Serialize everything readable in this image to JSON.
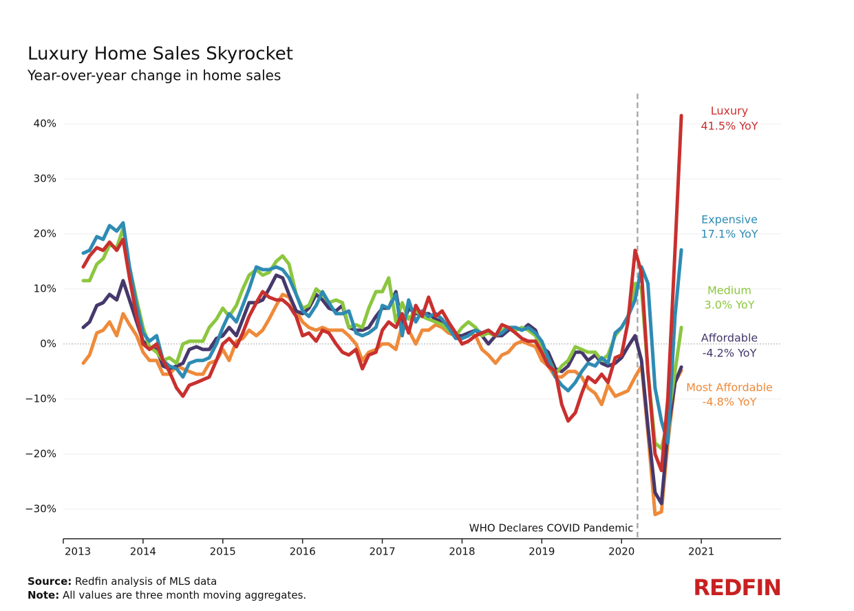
{
  "chart_data": {
    "type": "line",
    "title": "Luxury Home Sales Skyrocket",
    "subtitle": "Year-over-year change in home sales",
    "source_label": "Source:",
    "source": "Redfin analysis of MLS data",
    "note_label": "Note:",
    "note": "All values are three month moving aggregates.",
    "logo": "REDFIN",
    "annotation": {
      "x": 2020.2,
      "text": "WHO Declares COVID Pandemic"
    },
    "xlim": [
      2013,
      2022
    ],
    "xticks": [
      2013,
      2014,
      2015,
      2016,
      2017,
      2018,
      2019,
      2020,
      2021
    ],
    "ylim": [
      -35.4,
      45
    ],
    "yticks": [
      {
        "value": -30,
        "label": "−30%"
      },
      {
        "value": -20,
        "label": "−20%"
      },
      {
        "value": -10,
        "label": "−10%"
      },
      {
        "value": 0,
        "label": "0%"
      },
      {
        "value": 10,
        "label": "10%"
      },
      {
        "value": 20,
        "label": "20%"
      },
      {
        "value": 30,
        "label": "30%"
      },
      {
        "value": 40,
        "label": "40%"
      }
    ],
    "grid": true,
    "x": [
      2013.25,
      2013.33,
      2013.42,
      2013.5,
      2013.58,
      2013.67,
      2013.75,
      2013.83,
      2013.92,
      2014,
      2014.08,
      2014.17,
      2014.25,
      2014.33,
      2014.42,
      2014.5,
      2014.58,
      2014.67,
      2014.75,
      2014.83,
      2014.92,
      2015,
      2015.08,
      2015.17,
      2015.25,
      2015.33,
      2015.42,
      2015.5,
      2015.58,
      2015.67,
      2015.75,
      2015.83,
      2015.92,
      2016,
      2016.08,
      2016.17,
      2016.25,
      2016.33,
      2016.42,
      2016.5,
      2016.58,
      2016.67,
      2016.75,
      2016.83,
      2016.92,
      2017,
      2017.08,
      2017.17,
      2017.25,
      2017.33,
      2017.42,
      2017.5,
      2017.58,
      2017.67,
      2017.75,
      2017.83,
      2017.92,
      2018,
      2018.08,
      2018.17,
      2018.25,
      2018.33,
      2018.42,
      2018.5,
      2018.58,
      2018.67,
      2018.75,
      2018.83,
      2018.92,
      2019,
      2019.08,
      2019.17,
      2019.25,
      2019.33,
      2019.42,
      2019.5,
      2019.58,
      2019.67,
      2019.75,
      2019.83,
      2019.92,
      2020,
      2020.08,
      2020.17,
      2020.25,
      2020.33,
      2020.42,
      2020.5,
      2020.58,
      2020.67,
      2020.75
    ],
    "series": [
      {
        "name": "Luxury",
        "end_label": "41.5% YoY",
        "color": "#c8302e",
        "values": [
          14,
          16,
          17.5,
          17,
          18.5,
          17,
          19,
          12,
          5,
          0,
          -1,
          0,
          -3,
          -5,
          -8,
          -9.5,
          -7.5,
          -7,
          -6.5,
          -6,
          -3,
          0,
          1,
          -0.5,
          2,
          5,
          7.5,
          9.5,
          8.5,
          8,
          8,
          7,
          5,
          1.5,
          2,
          0.5,
          2.5,
          2,
          0,
          -1.5,
          -2,
          -1,
          -4.5,
          -2,
          -1.5,
          2.5,
          4,
          3,
          5.5,
          2,
          7,
          5,
          8.5,
          5,
          6,
          4,
          2,
          0,
          0.5,
          1.5,
          2,
          2.5,
          1.5,
          3.5,
          3,
          2,
          1,
          0.5,
          0.5,
          -1.5,
          -4,
          -5,
          -11,
          -14,
          -12.5,
          -9,
          -6,
          -7,
          -5.5,
          -7,
          -2.5,
          -2,
          4,
          17,
          13,
          -5,
          -20,
          -23,
          -10,
          17,
          41.5
        ]
      },
      {
        "name": "Expensive",
        "end_label": "17.1% YoY",
        "color": "#2e8bb3",
        "values": [
          16.5,
          17,
          19.5,
          19,
          21.5,
          20.5,
          22,
          14,
          7,
          2,
          0.5,
          1.5,
          -3,
          -4,
          -4.5,
          -6,
          -3.5,
          -3,
          -3,
          -2.5,
          0,
          3,
          5.5,
          4,
          7,
          10,
          14,
          13.5,
          13.5,
          14,
          13.5,
          12,
          9,
          6,
          5,
          7,
          9.5,
          7.5,
          5.5,
          5.5,
          6,
          2,
          1.5,
          2,
          3,
          7,
          6.5,
          9,
          1.5,
          8,
          4,
          6,
          5,
          5.5,
          4.5,
          3,
          1,
          1,
          1.5,
          2.5,
          2,
          2.5,
          1.5,
          2,
          3,
          3,
          2.5,
          3,
          2,
          0.5,
          -2.5,
          -6,
          -7.5,
          -8.5,
          -7,
          -5,
          -3.5,
          -4,
          -2.5,
          -3.5,
          2,
          3,
          5,
          8,
          14,
          11,
          -8,
          -14,
          -18,
          5,
          17.1
        ]
      },
      {
        "name": "Medium",
        "end_label": "3.0% YoY",
        "color": "#8cc63f",
        "values": [
          11.5,
          11.5,
          14.5,
          15.5,
          18,
          17.5,
          21,
          14,
          8,
          3,
          -0.5,
          -1.5,
          -3,
          -2.5,
          -3.5,
          0,
          0.5,
          0.5,
          0.5,
          3,
          4.5,
          6.5,
          5,
          7,
          10,
          12.5,
          13.5,
          12.5,
          13,
          15,
          16,
          14.5,
          9,
          6.5,
          7,
          10,
          9,
          7.5,
          8,
          7.5,
          3,
          3.5,
          3,
          6.5,
          9.5,
          9.5,
          12,
          4,
          7.5,
          4.5,
          6,
          5,
          4.5,
          4,
          3.5,
          2.5,
          1.5,
          3,
          4,
          3,
          1.5,
          2,
          1.5,
          2.5,
          3,
          2.5,
          3,
          2.5,
          1.5,
          -1,
          -2.5,
          -5.5,
          -4,
          -3,
          -0.5,
          -1,
          -1.5,
          -1.5,
          -3,
          -2,
          1.5,
          3,
          5,
          11,
          10,
          -5,
          -18,
          -19,
          -14,
          -5,
          3.0
        ]
      },
      {
        "name": "Affordable",
        "end_label": "-4.2% YoY",
        "color": "#46386b",
        "values": [
          3,
          4,
          7,
          7.5,
          9,
          8,
          11.5,
          8,
          4,
          0.5,
          -0.5,
          -1,
          -4,
          -4.5,
          -4,
          -3.5,
          -1,
          -0.5,
          -1,
          -1,
          1,
          1.5,
          3,
          1.5,
          4.5,
          7.5,
          7.5,
          8,
          10,
          12.5,
          12,
          9,
          6,
          5.5,
          6.5,
          9,
          8,
          6.5,
          6,
          7,
          3,
          2.5,
          2.5,
          3,
          5,
          6.5,
          6.5,
          9.5,
          3,
          6.5,
          5.5,
          5.5,
          5.5,
          4.5,
          4,
          2.5,
          1.5,
          1.5,
          2,
          2.5,
          1.5,
          0,
          1.5,
          1.5,
          2.5,
          3,
          2.5,
          3.5,
          2.5,
          -0.5,
          -1.5,
          -4.5,
          -5,
          -4,
          -1.5,
          -1.5,
          -3,
          -2,
          -3.5,
          -4,
          -3.5,
          -2.5,
          -0.5,
          1.5,
          -3,
          -15,
          -27,
          -29,
          -16,
          -7,
          -4.2
        ]
      },
      {
        "name": "Most Affordable",
        "end_label": "-4.8% YoY",
        "color": "#ee8a3a",
        "values": [
          -3.5,
          -2,
          2,
          2.5,
          4,
          1.5,
          5.5,
          3.5,
          1.5,
          -1.5,
          -3,
          -3,
          -5.5,
          -5.5,
          -4,
          -4.5,
          -5,
          -5.5,
          -5.5,
          -3.5,
          -3,
          -1,
          -3,
          0.5,
          1,
          2.5,
          1.5,
          2.5,
          4.5,
          7,
          9,
          8.5,
          6,
          4,
          3,
          2.5,
          3,
          2.5,
          2.5,
          2.5,
          1.5,
          0,
          -3,
          -1.5,
          -1,
          0,
          0,
          -1,
          3.5,
          2.5,
          0,
          2.5,
          2.5,
          3.5,
          3,
          2,
          1.5,
          1,
          2,
          1.5,
          -1,
          -2,
          -3.5,
          -2,
          -1.5,
          0,
          0.5,
          0,
          -0.5,
          -3,
          -4,
          -6,
          -6,
          -5,
          -5,
          -6,
          -8,
          -9,
          -11,
          -7.5,
          -9.5,
          -9,
          -8.5,
          -6,
          -4,
          -16,
          -31,
          -30.5,
          -18,
          -7,
          -4.8
        ]
      }
    ]
  }
}
